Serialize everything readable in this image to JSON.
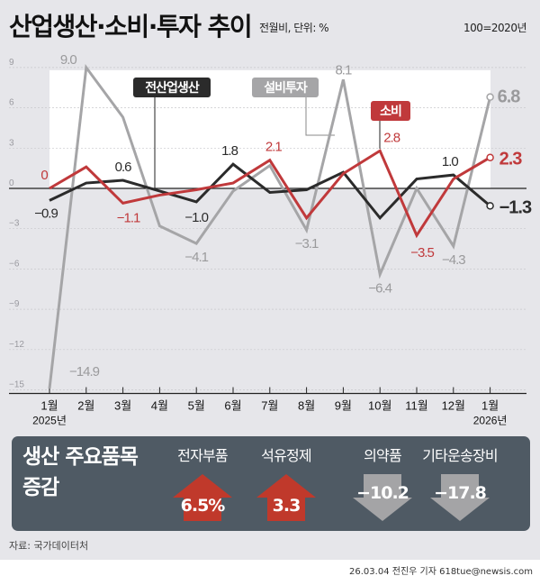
{
  "header": {
    "title": "산업생산·소비·투자 추이",
    "subtitle": "전월비, 단위: %",
    "base_note": "100=2020년"
  },
  "chart_data": {
    "type": "line",
    "title": "산업생산·소비·투자 추이",
    "ylabel": "",
    "ylim": [
      -15,
      9
    ],
    "yticks": [
      "9",
      "6",
      "3",
      "0",
      "−3",
      "−6",
      "−9",
      "−12",
      "−15"
    ],
    "ytick_values": [
      9,
      6,
      3,
      0,
      -3,
      -6,
      -9,
      -12,
      -15
    ],
    "categories": [
      "1월",
      "2월",
      "3월",
      "4월",
      "5월",
      "6월",
      "7월",
      "8월",
      "9월",
      "10월",
      "11월",
      "12월",
      "1월"
    ],
    "year_labels": {
      "start": "2025년",
      "end": "2026년"
    },
    "grid": true,
    "series": [
      {
        "name": "설비투자",
        "color": "#a5a5a7",
        "values": [
          -14.9,
          9.0,
          5.3,
          -2.8,
          -4.1,
          -0.2,
          1.7,
          -3.1,
          8.1,
          -6.4,
          0.0,
          -4.3,
          6.8
        ],
        "labels": [
          "−14.9",
          "9.0",
          null,
          null,
          "−4.1",
          null,
          null,
          "−3.1",
          "8.1",
          "−6.4",
          null,
          "−4.3",
          "6.8"
        ]
      },
      {
        "name": "전산업생산",
        "color": "#2b2b2b",
        "values": [
          -0.9,
          0.4,
          0.6,
          -0.2,
          -1.0,
          1.8,
          -0.3,
          -0.1,
          1.2,
          -2.2,
          0.7,
          1.0,
          -1.3
        ],
        "labels": [
          "−0.9",
          null,
          "0.6",
          null,
          "−1.0",
          "1.8",
          null,
          null,
          null,
          null,
          null,
          "1.0",
          "−1.3"
        ]
      },
      {
        "name": "소비",
        "color": "#c0393b",
        "values": [
          0,
          1.6,
          -1.1,
          -0.5,
          -0.1,
          0.4,
          2.1,
          -2.2,
          1.1,
          2.8,
          -3.5,
          0.7,
          2.3
        ],
        "labels": [
          "0",
          null,
          "−1.1",
          null,
          null,
          null,
          "2.1",
          null,
          null,
          "2.8",
          "−3.5",
          null,
          "2.3"
        ]
      }
    ]
  },
  "panel": {
    "title": "생산 주요품목 증감",
    "items": [
      {
        "label": "전자부품",
        "value": "6.5%",
        "direction": "up",
        "color": "#c0392b"
      },
      {
        "label": "석유정제",
        "value": "3.3",
        "direction": "up",
        "color": "#c0392b"
      },
      {
        "label": "의약품",
        "value": "−10.2",
        "direction": "down",
        "color": "#a4a4a6"
      },
      {
        "label": "기타운송장비",
        "value": "−17.8",
        "direction": "down",
        "color": "#a4a4a6"
      }
    ]
  },
  "footer": {
    "source": "자료: 국가데이터처",
    "credit": "26.03.04 전진우 기자 618tue@newsis.com"
  }
}
